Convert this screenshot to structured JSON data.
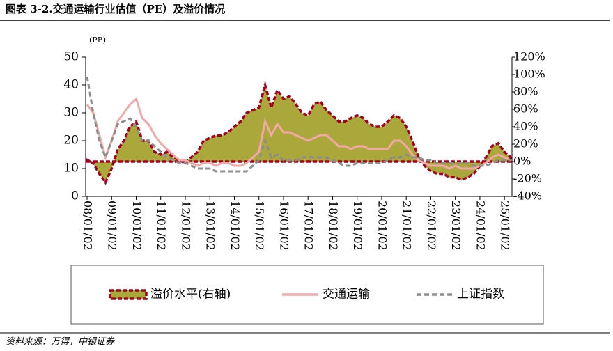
{
  "chart_data": {
    "type": "line",
    "title": "图表 3-2.交通运输行业估值（PE）及溢价情况",
    "ylabel": "(PE)",
    "source": "资料来源：万得，中银证券",
    "legend": "bottom",
    "categories": [
      "08/01/02",
      null,
      null,
      null,
      "09/01/02",
      null,
      null,
      null,
      "10/01/02",
      null,
      null,
      null,
      "11/01/02",
      null,
      null,
      null,
      "12/01/02",
      null,
      null,
      null,
      "13/01/02",
      null,
      null,
      null,
      "14/01/02",
      null,
      null,
      null,
      "15/01/02",
      null,
      null,
      null,
      "16/01/02",
      null,
      null,
      null,
      "17/01/02",
      null,
      null,
      null,
      "18/01/02",
      null,
      null,
      null,
      "19/01/02",
      null,
      null,
      null,
      "20/01/02",
      null,
      null,
      null,
      "21/01/02",
      null,
      null,
      null,
      "22/01/02",
      null,
      null,
      null,
      "23/01/02",
      null,
      null,
      null,
      "24/01/02",
      null,
      null,
      null,
      "25/01/02",
      null
    ],
    "ylim": [
      0,
      50
    ],
    "yticks": [
      0,
      10,
      20,
      30,
      40,
      50
    ],
    "y2lim": [
      -40,
      120
    ],
    "y2ticks": [
      {
        "value": -40,
        "label": "-40%"
      },
      {
        "value": -20,
        "label": "-20%"
      },
      {
        "value": 0,
        "label": "0%"
      },
      {
        "value": 20,
        "label": "20%"
      },
      {
        "value": 40,
        "label": "40%"
      },
      {
        "value": 60,
        "label": "60%"
      },
      {
        "value": 80,
        "label": "80%"
      },
      {
        "value": 100,
        "label": "100%"
      },
      {
        "value": 120,
        "label": "120%"
      }
    ],
    "series": [
      {
        "name": "溢价水平(右轴)",
        "axis": "y2",
        "style": "area",
        "color": "#aaa83a",
        "edge_color": "#a50021",
        "values": [
          2,
          -2,
          -14,
          -24,
          -8,
          14,
          24,
          40,
          46,
          24,
          24,
          11,
          8,
          11,
          5,
          2,
          -2,
          5,
          11,
          24,
          27,
          30,
          30,
          34,
          40,
          46,
          56,
          59,
          62,
          88,
          62,
          82,
          72,
          75,
          66,
          56,
          53,
          66,
          69,
          59,
          53,
          46,
          46,
          50,
          53,
          50,
          43,
          40,
          40,
          46,
          53,
          50,
          40,
          24,
          5,
          -5,
          -11,
          -14,
          -14,
          -18,
          -18,
          -21,
          -18,
          -14,
          -5,
          5,
          18,
          21,
          11,
          5
        ]
      },
      {
        "name": "交通运输",
        "color": "#f0a8a8",
        "values": [
          33,
          30,
          22,
          14,
          20,
          27,
          30,
          33,
          35,
          28,
          26,
          22,
          19,
          17,
          15,
          13,
          13,
          12,
          11,
          12,
          12,
          11,
          12,
          12,
          11,
          11,
          12,
          14,
          16,
          27,
          22,
          26,
          23,
          23,
          22,
          21,
          20,
          21,
          22,
          22,
          20,
          18,
          18,
          17,
          18,
          18,
          17,
          17,
          17,
          17,
          20,
          20,
          18,
          15,
          13,
          12,
          11,
          11,
          11,
          10,
          11,
          10,
          10,
          10,
          11,
          12,
          14,
          15,
          14,
          13
        ]
      },
      {
        "name": "上证指数",
        "color": "#8c8c8c",
        "dash": true,
        "values": [
          43,
          30,
          20,
          14,
          20,
          26,
          27,
          28,
          25,
          20,
          20,
          18,
          16,
          14,
          13,
          12,
          12,
          11,
          10,
          10,
          10,
          9,
          9,
          9,
          9,
          9,
          9,
          11,
          13,
          20,
          14,
          15,
          13,
          13,
          13,
          14,
          14,
          14,
          14,
          14,
          13,
          12,
          11,
          11,
          12,
          12,
          12,
          12,
          12,
          13,
          14,
          14,
          15,
          14,
          14,
          13,
          13,
          12,
          12,
          12,
          12,
          12,
          12,
          11,
          11,
          11,
          12,
          13,
          13,
          13
        ]
      }
    ]
  }
}
